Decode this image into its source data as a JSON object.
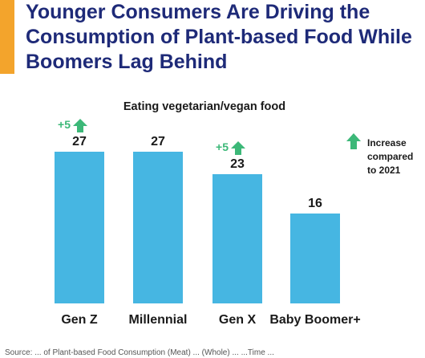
{
  "colors": {
    "title": "#1e2a78",
    "accent": "#f3a42c",
    "bar": "#46b6e2",
    "increase": "#3cb878",
    "text": "#1a1a1a"
  },
  "title": "Younger Consumers Are Driving the Consumption of Plant-based Food While Boomers Lag Behind",
  "chart_data": {
    "type": "bar",
    "title": "Eating vegetarian/vegan food",
    "categories": [
      "Gen Z",
      "Millennial",
      "Gen X",
      "Baby Boomer+"
    ],
    "values": [
      27,
      27,
      23,
      16
    ],
    "value_labels": [
      "27",
      "27",
      "23",
      "16"
    ],
    "increase_labels": [
      "+5",
      "",
      "+5",
      ""
    ],
    "increase_icon": "up-arrow-icon",
    "legend": {
      "icon": "up-arrow-icon",
      "label_lines": [
        "Increase",
        "compared",
        "to 2021"
      ],
      "position": "right"
    },
    "ylim": [
      0,
      30
    ],
    "grid": false
  },
  "footnote": "Source: ... of Plant-based Food Consumption (Meat) ... (Whole) ... ...Time ..."
}
